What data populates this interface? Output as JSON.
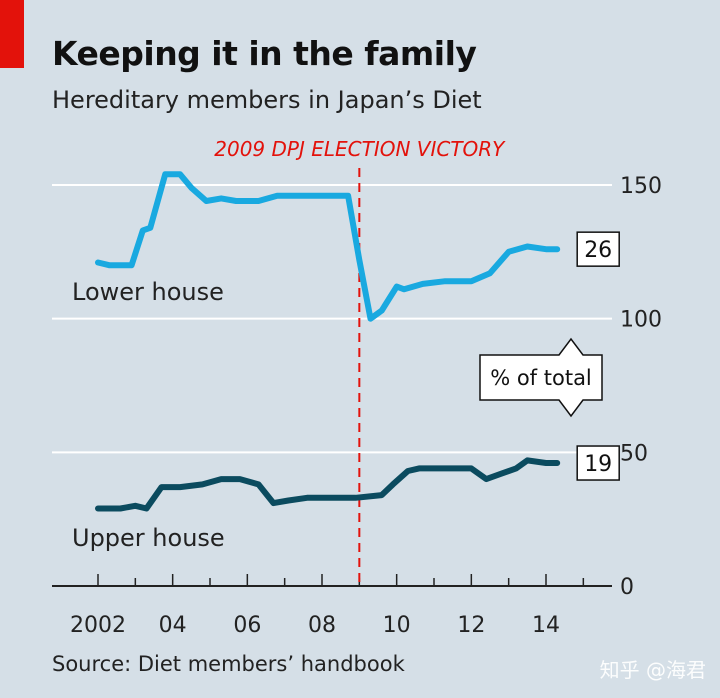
{
  "header": {
    "title": "Keeping it in the family",
    "subtitle": "Hereditary members in Japan’s Diet"
  },
  "footer": {
    "source": "Source: Diet members’ handbook",
    "watermark": "知乎 @海君"
  },
  "colors": {
    "background": "#d5dfe7",
    "brand_red": "#e3120b",
    "lower_house": "#19a9e0",
    "upper_house": "#0b4b5f",
    "gridline": "#ffffff",
    "axis": "#222222"
  },
  "chart_data": {
    "type": "line",
    "title": "Keeping it in the family",
    "subtitle": "Hereditary members in Japan’s Diet",
    "ylabel": "% of total",
    "ylim": [
      0,
      150
    ],
    "y_ticks": [
      0,
      50,
      100,
      150
    ],
    "y_tick_labels": [
      "0",
      "50",
      "100",
      "150"
    ],
    "y_axis_side": "right",
    "x_ticks": [
      2002,
      2004,
      2006,
      2008,
      2010,
      2012,
      2014
    ],
    "x_tick_labels": [
      "2002",
      "04",
      "06",
      "08",
      "10",
      "12",
      "14"
    ],
    "xlim": [
      2001.5,
      2015
    ],
    "grid": true,
    "annotation": {
      "label": "2009 DPJ ELECTION VICTORY",
      "x": 2009.0,
      "style": "dashed red vertical line"
    },
    "series": [
      {
        "name": "Lower house",
        "color": "#19a9e0",
        "end_value_label": "26",
        "points": [
          [
            2002.0,
            121
          ],
          [
            2002.3,
            120
          ],
          [
            2002.6,
            120
          ],
          [
            2002.9,
            120
          ],
          [
            2003.2,
            133
          ],
          [
            2003.4,
            134
          ],
          [
            2003.8,
            154
          ],
          [
            2004.2,
            154
          ],
          [
            2004.5,
            149
          ],
          [
            2004.9,
            144
          ],
          [
            2005.3,
            145
          ],
          [
            2005.7,
            144
          ],
          [
            2006.3,
            144
          ],
          [
            2006.8,
            146
          ],
          [
            2007.5,
            146
          ],
          [
            2008.1,
            146
          ],
          [
            2008.7,
            146
          ],
          [
            2009.0,
            122
          ],
          [
            2009.3,
            100
          ],
          [
            2009.6,
            103
          ],
          [
            2010.0,
            112
          ],
          [
            2010.2,
            111
          ],
          [
            2010.7,
            113
          ],
          [
            2011.3,
            114
          ],
          [
            2012.0,
            114
          ],
          [
            2012.5,
            117
          ],
          [
            2013.0,
            125
          ],
          [
            2013.5,
            127
          ],
          [
            2014.0,
            126
          ],
          [
            2014.3,
            126
          ]
        ]
      },
      {
        "name": "Upper house",
        "color": "#0b4b5f",
        "end_value_label": "19",
        "points": [
          [
            2002.0,
            29
          ],
          [
            2002.6,
            29
          ],
          [
            2003.0,
            30
          ],
          [
            2003.3,
            29
          ],
          [
            2003.7,
            37
          ],
          [
            2004.2,
            37
          ],
          [
            2004.8,
            38
          ],
          [
            2005.3,
            40
          ],
          [
            2005.8,
            40
          ],
          [
            2006.3,
            38
          ],
          [
            2006.7,
            31
          ],
          [
            2007.1,
            32
          ],
          [
            2007.6,
            33
          ],
          [
            2008.2,
            33
          ],
          [
            2008.9,
            33
          ],
          [
            2009.6,
            34
          ],
          [
            2009.9,
            38
          ],
          [
            2010.3,
            43
          ],
          [
            2010.6,
            44
          ],
          [
            2011.4,
            44
          ],
          [
            2012.0,
            44
          ],
          [
            2012.4,
            40
          ],
          [
            2012.8,
            42
          ],
          [
            2013.2,
            44
          ],
          [
            2013.5,
            47
          ],
          [
            2014.0,
            46
          ],
          [
            2014.3,
            46
          ]
        ]
      }
    ]
  }
}
